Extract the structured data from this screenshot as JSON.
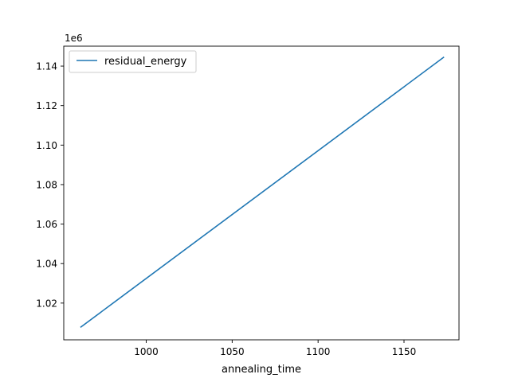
{
  "chart_data": {
    "type": "line",
    "xlabel": "annealing_time",
    "ylabel": "",
    "offset_label": "1e6",
    "xlim": [
      952,
      1182
    ],
    "ylim": [
      1.0014,
      1.1501
    ],
    "x_ticks": [
      1000,
      1050,
      1100,
      1150
    ],
    "y_ticks": [
      1.02,
      1.04,
      1.06,
      1.08,
      1.1,
      1.12,
      1.14
    ],
    "y_tick_labels": [
      "1.02",
      "1.04",
      "1.06",
      "1.08",
      "1.10",
      "1.12",
      "1.14"
    ],
    "legend": {
      "position": "top-left",
      "entries": [
        "residual_energy"
      ]
    },
    "grid": false,
    "series": [
      {
        "name": "residual_energy",
        "color": "#1f77b4",
        "x": [
          962,
          1173
        ],
        "y": [
          1.0079,
          1.1444
        ]
      }
    ]
  }
}
